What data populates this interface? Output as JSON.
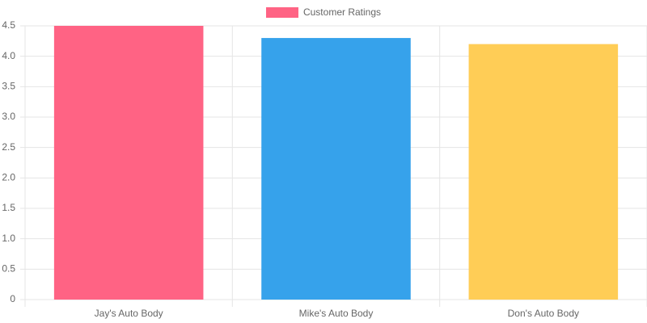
{
  "chart_data": {
    "type": "bar",
    "categories": [
      "Jay's Auto Body",
      "Mike's Auto Body",
      "Don's Auto Body"
    ],
    "series": [
      {
        "name": "Customer Ratings",
        "colors": [
          "#ff6384",
          "#36a2eb",
          "#ffcd56"
        ],
        "values": [
          4.5,
          4.3,
          4.2
        ]
      }
    ],
    "ylim": [
      0,
      4.5
    ],
    "yticks": [
      0,
      0.5,
      {
        "value": 1,
        "label": "1.0"
      },
      1.5,
      {
        "value": 2,
        "label": "2.0"
      },
      2.5,
      {
        "value": 3,
        "label": "3.0"
      },
      3.5,
      {
        "value": 4,
        "label": "4.0"
      },
      4.5
    ],
    "grid": true,
    "legend": "top"
  }
}
